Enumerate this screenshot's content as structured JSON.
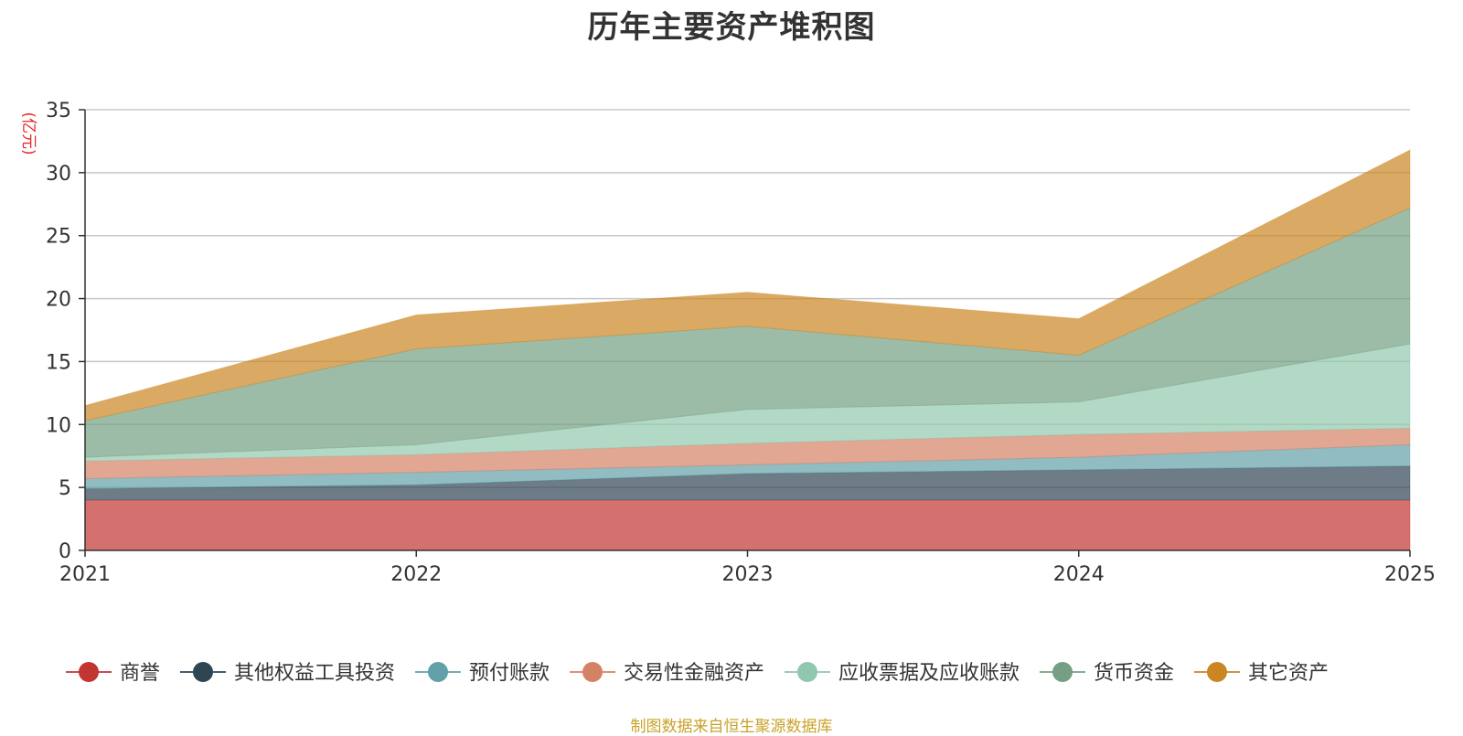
{
  "chart_data": {
    "type": "area",
    "stacked": true,
    "title": "历年主要资产堆积图",
    "ylabel": "(亿元)",
    "xlabel": "",
    "x": [
      "2021",
      "2022",
      "2023",
      "2024",
      "2025"
    ],
    "ylim": [
      0,
      35
    ],
    "yticks": [
      0,
      5,
      10,
      15,
      20,
      25,
      30,
      35
    ],
    "grid": true,
    "legend_position": "bottom",
    "series": [
      {
        "name": "商誉",
        "color": "#c23531",
        "values": [
          4.0,
          4.0,
          4.0,
          4.0,
          4.0
        ]
      },
      {
        "name": "其他权益工具投资",
        "color": "#2f4554",
        "values": [
          0.9,
          1.2,
          2.1,
          2.4,
          2.7
        ]
      },
      {
        "name": "预付账款",
        "color": "#61a0a8",
        "values": [
          0.8,
          1.0,
          0.7,
          1.0,
          1.7
        ]
      },
      {
        "name": "交易性金融资产",
        "color": "#d48265",
        "values": [
          1.4,
          1.4,
          1.7,
          1.8,
          1.3
        ]
      },
      {
        "name": "应收票据及应收账款",
        "color": "#91c7ae",
        "values": [
          0.3,
          0.8,
          2.7,
          2.6,
          6.7
        ]
      },
      {
        "name": "货币资金",
        "color": "#749f83",
        "values": [
          2.9,
          7.6,
          6.6,
          3.7,
          10.8
        ]
      },
      {
        "name": "其它资产",
        "color": "#ca8622",
        "values": [
          1.2,
          2.7,
          2.7,
          2.9,
          4.6
        ]
      }
    ]
  },
  "source_note": "制图数据来自恒生聚源数据库"
}
